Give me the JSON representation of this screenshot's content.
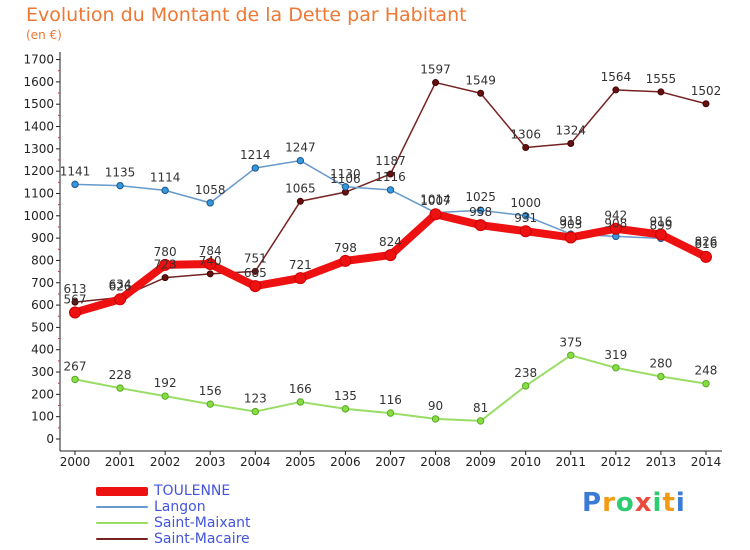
{
  "title": "Evolution du Montant de la Dette par Habitant",
  "subtitle": "(en €)",
  "logo": {
    "text": "Proxiti",
    "colors": [
      "#3a7bd5",
      "#f39c12",
      "#2ecc71",
      "#e74c3c"
    ]
  },
  "chart_data": {
    "type": "line",
    "title": "Evolution du Montant de la Dette par Habitant",
    "subtitle": "(en €)",
    "x": [
      "2000",
      "2001",
      "2002",
      "2003",
      "2004",
      "2005",
      "2006",
      "2007",
      "2008",
      "2009",
      "2010",
      "2011",
      "2012",
      "2013",
      "2014"
    ],
    "yticks": [
      "0",
      "100",
      "200",
      "300",
      "400",
      "500",
      "600",
      "700",
      "800",
      "900",
      "1000",
      "1100",
      "1200",
      "1300",
      "1400",
      "1500",
      "1600",
      "1700"
    ],
    "ylim": [
      0,
      1700
    ],
    "grid": false,
    "legend_position": "bottom-left",
    "series": [
      {
        "name": "TOULENNE",
        "color": "#ee1111",
        "values": [
          567,
          626,
          780,
          784,
          685,
          721,
          798,
          824,
          1007,
          958,
          931,
          903,
          942,
          916,
          816
        ]
      },
      {
        "name": "Langon",
        "color": "#6699cc",
        "values": [
          1141,
          1135,
          1114,
          1058,
          1214,
          1247,
          1130,
          1116,
          1014,
          1025,
          1000,
          918,
          908,
          899,
          826
        ]
      },
      {
        "name": "Saint-Maixant",
        "color": "#99dd66",
        "values": [
          267,
          228,
          192,
          156,
          123,
          166,
          135,
          116,
          90,
          81,
          238,
          375,
          319,
          280,
          248
        ]
      },
      {
        "name": "Saint-Macaire",
        "color": "#772222",
        "values": [
          613,
          634,
          723,
          740,
          751,
          1065,
          1106,
          1187,
          1597,
          1549,
          1306,
          1324,
          1564,
          1555,
          1502
        ]
      }
    ]
  }
}
